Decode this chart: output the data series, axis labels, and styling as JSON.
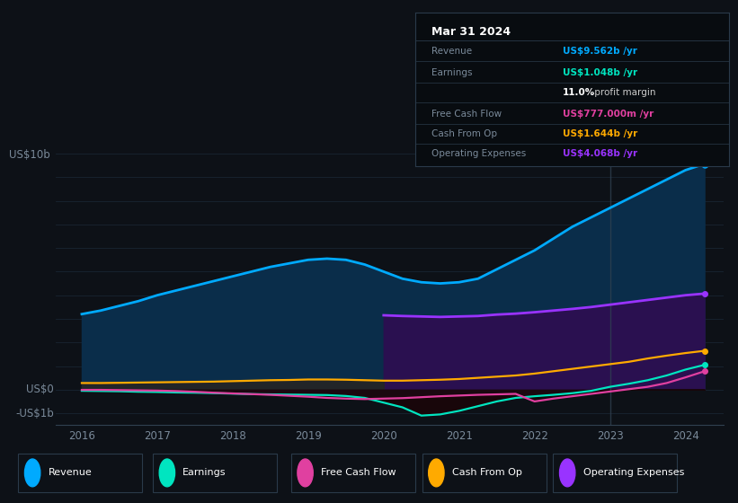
{
  "background_color": "#0d1117",
  "plot_bg_color": "#0d1117",
  "years": [
    2016.0,
    2016.25,
    2016.5,
    2016.75,
    2017.0,
    2017.25,
    2017.5,
    2017.75,
    2018.0,
    2018.25,
    2018.5,
    2018.75,
    2019.0,
    2019.25,
    2019.5,
    2019.75,
    2020.0,
    2020.25,
    2020.5,
    2020.75,
    2021.0,
    2021.25,
    2021.5,
    2021.75,
    2022.0,
    2022.25,
    2022.5,
    2022.75,
    2023.0,
    2023.25,
    2023.5,
    2023.75,
    2024.0,
    2024.25
  ],
  "revenue": [
    3.2,
    3.35,
    3.55,
    3.75,
    4.0,
    4.2,
    4.4,
    4.6,
    4.8,
    5.0,
    5.2,
    5.35,
    5.5,
    5.55,
    5.5,
    5.3,
    5.0,
    4.7,
    4.55,
    4.5,
    4.55,
    4.7,
    5.1,
    5.5,
    5.9,
    6.4,
    6.9,
    7.3,
    7.7,
    8.1,
    8.5,
    8.9,
    9.3,
    9.562
  ],
  "earnings": [
    -0.05,
    -0.06,
    -0.07,
    -0.09,
    -0.1,
    -0.12,
    -0.13,
    -0.15,
    -0.17,
    -0.19,
    -0.2,
    -0.21,
    -0.22,
    -0.23,
    -0.27,
    -0.35,
    -0.55,
    -0.75,
    -1.1,
    -1.05,
    -0.9,
    -0.7,
    -0.5,
    -0.35,
    -0.28,
    -0.22,
    -0.15,
    -0.05,
    0.12,
    0.25,
    0.4,
    0.6,
    0.85,
    1.048
  ],
  "free_cash_flow": [
    -0.01,
    -0.01,
    -0.02,
    -0.03,
    -0.04,
    -0.06,
    -0.09,
    -0.13,
    -0.16,
    -0.19,
    -0.22,
    -0.26,
    -0.3,
    -0.35,
    -0.38,
    -0.4,
    -0.38,
    -0.36,
    -0.32,
    -0.28,
    -0.25,
    -0.22,
    -0.2,
    -0.18,
    -0.5,
    -0.38,
    -0.28,
    -0.18,
    -0.08,
    0.02,
    0.12,
    0.28,
    0.52,
    0.777
  ],
  "cash_from_op": [
    0.28,
    0.28,
    0.29,
    0.3,
    0.31,
    0.32,
    0.33,
    0.34,
    0.36,
    0.38,
    0.4,
    0.41,
    0.43,
    0.43,
    0.42,
    0.4,
    0.38,
    0.38,
    0.4,
    0.42,
    0.45,
    0.5,
    0.55,
    0.6,
    0.68,
    0.78,
    0.88,
    0.98,
    1.08,
    1.18,
    1.32,
    1.44,
    1.55,
    1.644
  ],
  "operating_expenses": [
    0.0,
    0.0,
    0.0,
    0.0,
    0.0,
    0.0,
    0.0,
    0.0,
    0.0,
    0.0,
    0.0,
    0.0,
    0.0,
    0.0,
    0.0,
    0.0,
    3.15,
    3.12,
    3.1,
    3.08,
    3.1,
    3.12,
    3.18,
    3.22,
    3.28,
    3.35,
    3.42,
    3.5,
    3.6,
    3.7,
    3.8,
    3.9,
    4.0,
    4.068
  ],
  "revenue_color": "#00aaff",
  "earnings_color": "#00e5c0",
  "free_cash_flow_color": "#e040a0",
  "cash_from_op_color": "#ffaa00",
  "operating_expenses_color": "#9933ff",
  "revenue_fill": "#0a2d4a",
  "opex_fill": "#2a1050",
  "vertical_line_x": 2023.0,
  "ylim_min": -1.5,
  "ylim_max": 11.5,
  "xlim_min": 2015.65,
  "xlim_max": 2024.5,
  "xticks": [
    2016,
    2017,
    2018,
    2019,
    2020,
    2021,
    2022,
    2023,
    2024
  ],
  "grid_color": "#1e2d3d",
  "grid_y_positions": [
    -1.0,
    0.0,
    1.0,
    2.0,
    3.0,
    4.0,
    5.0,
    6.0,
    7.0,
    8.0,
    9.0,
    10.0
  ],
  "legend_items": [
    {
      "label": "Revenue",
      "color": "#00aaff"
    },
    {
      "label": "Earnings",
      "color": "#00e5c0"
    },
    {
      "label": "Free Cash Flow",
      "color": "#e040a0"
    },
    {
      "label": "Cash From Op",
      "color": "#ffaa00"
    },
    {
      "label": "Operating Expenses",
      "color": "#9933ff"
    }
  ],
  "info_box": {
    "title": "Mar 31 2024",
    "rows": [
      {
        "label": "Revenue",
        "value": "US$9.562b /yr",
        "value_color": "#00aaff"
      },
      {
        "label": "Earnings",
        "value": "US$1.048b /yr",
        "value_color": "#00e5c0"
      },
      {
        "label": "",
        "value": "11.0%",
        "value_color": "white",
        "suffix": " profit margin"
      },
      {
        "label": "Free Cash Flow",
        "value": "US$777.000m /yr",
        "value_color": "#e040a0"
      },
      {
        "label": "Cash From Op",
        "value": "US$1.644b /yr",
        "value_color": "#ffaa00"
      },
      {
        "label": "Operating Expenses",
        "value": "US$4.068b /yr",
        "value_color": "#9933ff"
      }
    ]
  }
}
